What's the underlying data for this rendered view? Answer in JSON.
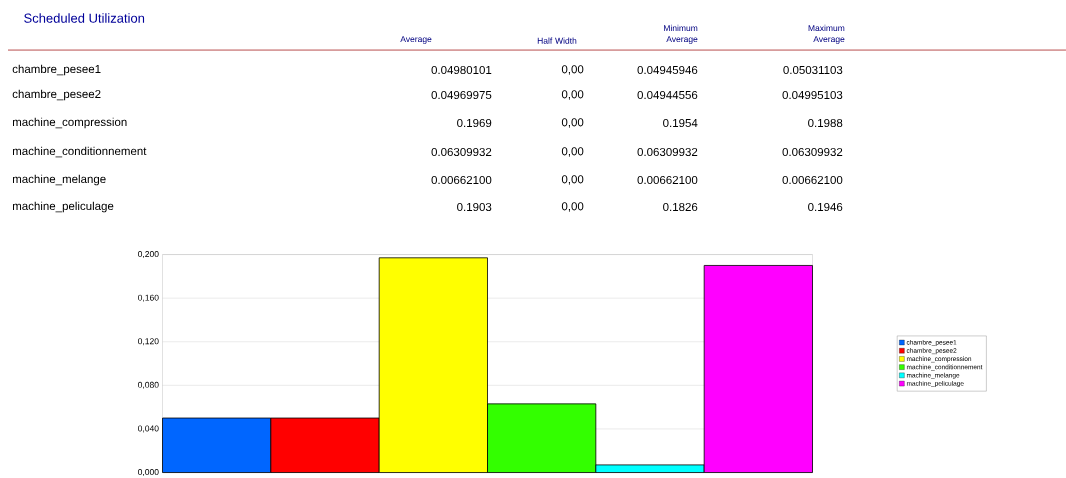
{
  "chart_data": {
    "type": "bar",
    "title": "Scheduled Utilization",
    "categories": [
      null,
      null,
      null,
      null,
      null,
      null
    ],
    "series": [
      {
        "name": "chambre_pesee1",
        "color": "#0066ff",
        "values": [
          0.05,
          null,
          null,
          null,
          null,
          null
        ]
      },
      {
        "name": "chambre_pesee2",
        "color": "#ff0000",
        "values": [
          null,
          0.05,
          null,
          null,
          null,
          null
        ]
      },
      {
        "name": "machine_compression",
        "color": "#ffff00",
        "values": [
          null,
          null,
          0.197,
          null,
          null,
          null
        ]
      },
      {
        "name": "machine_conditionnement",
        "color": "#33ff00",
        "values": [
          null,
          null,
          null,
          0.063,
          null,
          null
        ]
      },
      {
        "name": "machine_melange",
        "color": "#00ffff",
        "values": [
          null,
          null,
          null,
          null,
          0.007,
          null
        ]
      },
      {
        "name": "machine_peliculage",
        "color": "#ff00ff",
        "values": [
          null,
          null,
          null,
          null,
          null,
          0.19
        ]
      }
    ],
    "annotations": [
      "Average",
      "Half Width",
      "Minimum Average",
      "Maximum Average",
      "0.04980101",
      "0,00",
      "0.04945946",
      "0.05031103",
      "0.04969975",
      "0,00",
      "0.04944556",
      "0.04995103",
      "0.1969",
      "0,00",
      "0.1954",
      "0.1988",
      "0.06309932",
      "0,00",
      "0.06309932",
      "0.06309932",
      "0.00662100",
      "0,00",
      "0.00662100",
      "0.00662100",
      "0.1903",
      "0,00",
      "0.1826",
      "0.1946"
    ],
    "ylim": [
      0,
      0.2
    ],
    "yticks": [
      {
        "value": 0,
        "label": "0,000"
      },
      {
        "value": 0.04,
        "label": "0,040"
      },
      {
        "value": 0.08,
        "label": "0,080"
      },
      {
        "value": 0.12,
        "label": "0,120"
      },
      {
        "value": 0.16,
        "label": "0,160"
      },
      {
        "value": 0.2,
        "label": "0,200"
      }
    ],
    "grid": "y",
    "legend": "right",
    "tick_labels": "y"
  }
}
